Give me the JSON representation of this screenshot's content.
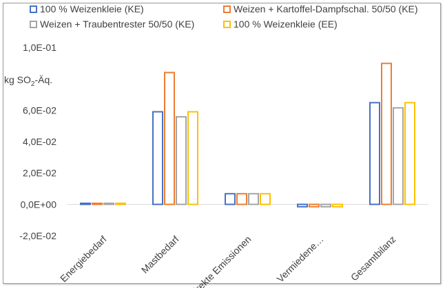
{
  "chart_data": {
    "type": "bar",
    "title": "",
    "ylabel": "kg SO₂-Äq.",
    "ylabel_parts": {
      "prefix": "kg SO",
      "sub": "2",
      "suffix": "-Äq."
    },
    "ylim": [
      -0.02,
      0.1
    ],
    "yticks": [
      -0.02,
      0.0,
      0.02,
      0.04,
      0.06,
      0.08,
      0.1
    ],
    "ytick_labels": [
      "-2,0E-02",
      "0,0E+00",
      "2,0E-02",
      "4,0E-02",
      "6,0E-02",
      "",
      "1,0E-01"
    ],
    "grid": false,
    "legend_position": "top",
    "categories": [
      "Energiebedarf",
      "Mastbedarf",
      "Direkte Emissionen",
      "Vermiedene…",
      "Gesamtbilanz"
    ],
    "series": [
      {
        "name": "100 % Weizenkleie (KE)",
        "color": "#4472c4",
        "values": [
          0.0007,
          0.059,
          0.0068,
          -0.0015,
          0.0648
        ]
      },
      {
        "name": "Weizen + Kartoffel-Dampfschal. 50/50 (KE)",
        "color": "#ed7d31",
        "values": [
          0.0007,
          0.084,
          0.0068,
          -0.0015,
          0.0898
        ]
      },
      {
        "name": "Weizen + Traubentrester 50/50 (KE)",
        "color": "#a5a5a5",
        "values": [
          0.0007,
          0.0558,
          0.0068,
          -0.0015,
          0.0615
        ]
      },
      {
        "name": "100 % Weizenkleie (EE)",
        "color": "#ffc000",
        "values": [
          0.0007,
          0.059,
          0.0068,
          -0.0015,
          0.0648
        ]
      }
    ]
  }
}
